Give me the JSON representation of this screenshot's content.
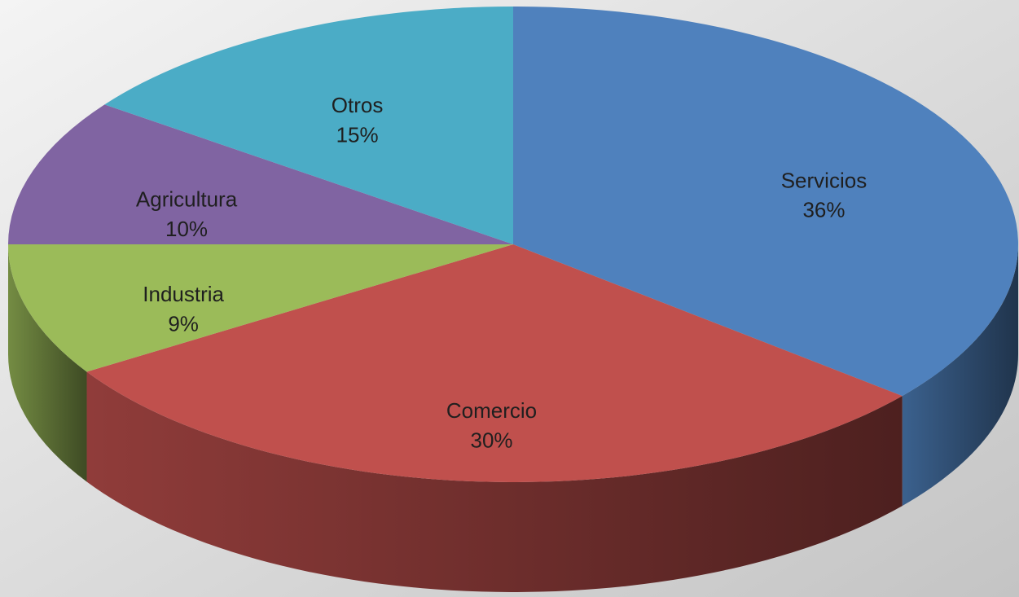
{
  "chart_data": {
    "type": "pie",
    "categories": [
      "Servicios",
      "Comercio",
      "Industria",
      "Agricultura",
      "Otros"
    ],
    "values": [
      36,
      30,
      9,
      10,
      15
    ],
    "value_labels": [
      "36%",
      "30%",
      "9%",
      "10%",
      "15%"
    ],
    "colors": [
      "#4f81bd",
      "#c0504d",
      "#9bbb59",
      "#8064a2",
      "#4bacc6"
    ]
  }
}
